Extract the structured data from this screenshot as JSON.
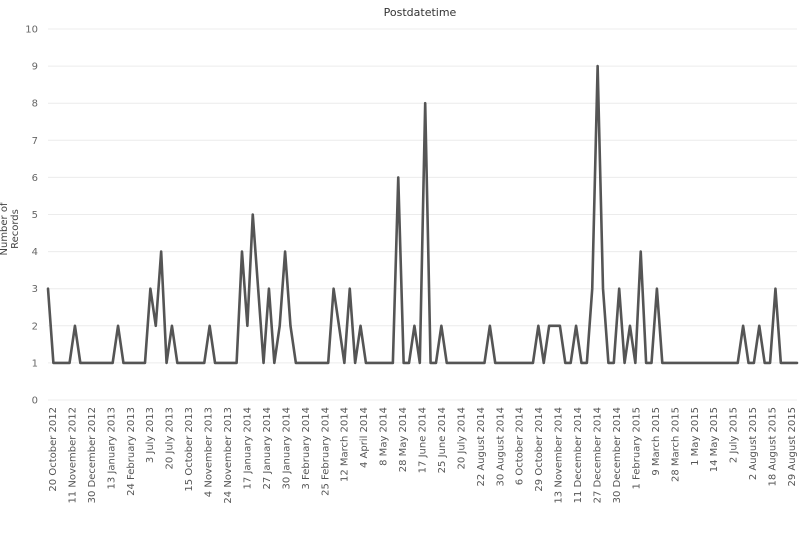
{
  "chart_data": {
    "type": "line",
    "title": "Postdatetime",
    "xlabel": "",
    "ylabel": "Number of Records",
    "ylim": [
      0,
      10
    ],
    "yticks": [
      0,
      1,
      2,
      3,
      4,
      5,
      6,
      7,
      8,
      9,
      10
    ],
    "grid": true,
    "legend": "none",
    "line_color": "#555555",
    "grid_color": "#ececec",
    "xticklabels": [
      "20 October 2012",
      "11 November 2012",
      "30 December 2012",
      "13 January 2013",
      "24 February 2013",
      "3 July 2013",
      "20 July 2013",
      "15 October 2013",
      "4 November 2013",
      "24 November 2013",
      "17 January 2014",
      "27 January 2014",
      "30 January 2014",
      "3 February 2014",
      "25 February 2014",
      "12 March 2014",
      "4 April 2014",
      "8 May 2014",
      "28 May 2014",
      "17 June 2014",
      "25 June 2014",
      "20 July 2014",
      "22 August 2014",
      "30 August 2014",
      "6 October 2014",
      "29 October 2014",
      "13 November 2014",
      "11 December 2014",
      "27 December 2014",
      "30 December 2014",
      "1 February 2015",
      "9 March 2015",
      "28 March 2015",
      "1 May 2015",
      "14 May 2015",
      "2 July 2015",
      "2 August 2015",
      "18 August 2015",
      "29 August 2015"
    ],
    "series": [
      {
        "values": [
          3,
          1,
          1,
          1,
          1,
          2,
          1,
          1,
          1,
          1,
          1,
          1,
          1,
          2,
          1,
          1,
          1,
          1,
          1,
          3,
          2,
          4,
          1,
          2,
          1,
          1,
          1,
          1,
          1,
          1,
          2,
          1,
          1,
          1,
          1,
          1,
          4,
          2,
          5,
          3,
          1,
          3,
          1,
          2,
          4,
          2,
          1,
          1,
          1,
          1,
          1,
          1,
          1,
          3,
          2,
          1,
          3,
          1,
          2,
          1,
          1,
          1,
          1,
          1,
          1,
          6,
          1,
          1,
          2,
          1,
          8,
          1,
          1,
          2,
          1,
          1,
          1,
          1,
          1,
          1,
          1,
          1,
          2,
          1,
          1,
          1,
          1,
          1,
          1,
          1,
          1,
          2,
          1,
          2,
          2,
          2,
          1,
          1,
          2,
          1,
          1,
          3,
          9,
          3,
          1,
          1,
          3,
          1,
          2,
          1,
          4,
          1,
          1,
          3,
          1,
          1,
          1,
          1,
          1,
          1,
          1,
          1,
          1,
          1,
          1,
          1,
          1,
          1,
          1,
          2,
          1,
          1,
          2,
          1,
          1,
          3,
          1,
          1,
          1,
          1
        ]
      }
    ]
  }
}
